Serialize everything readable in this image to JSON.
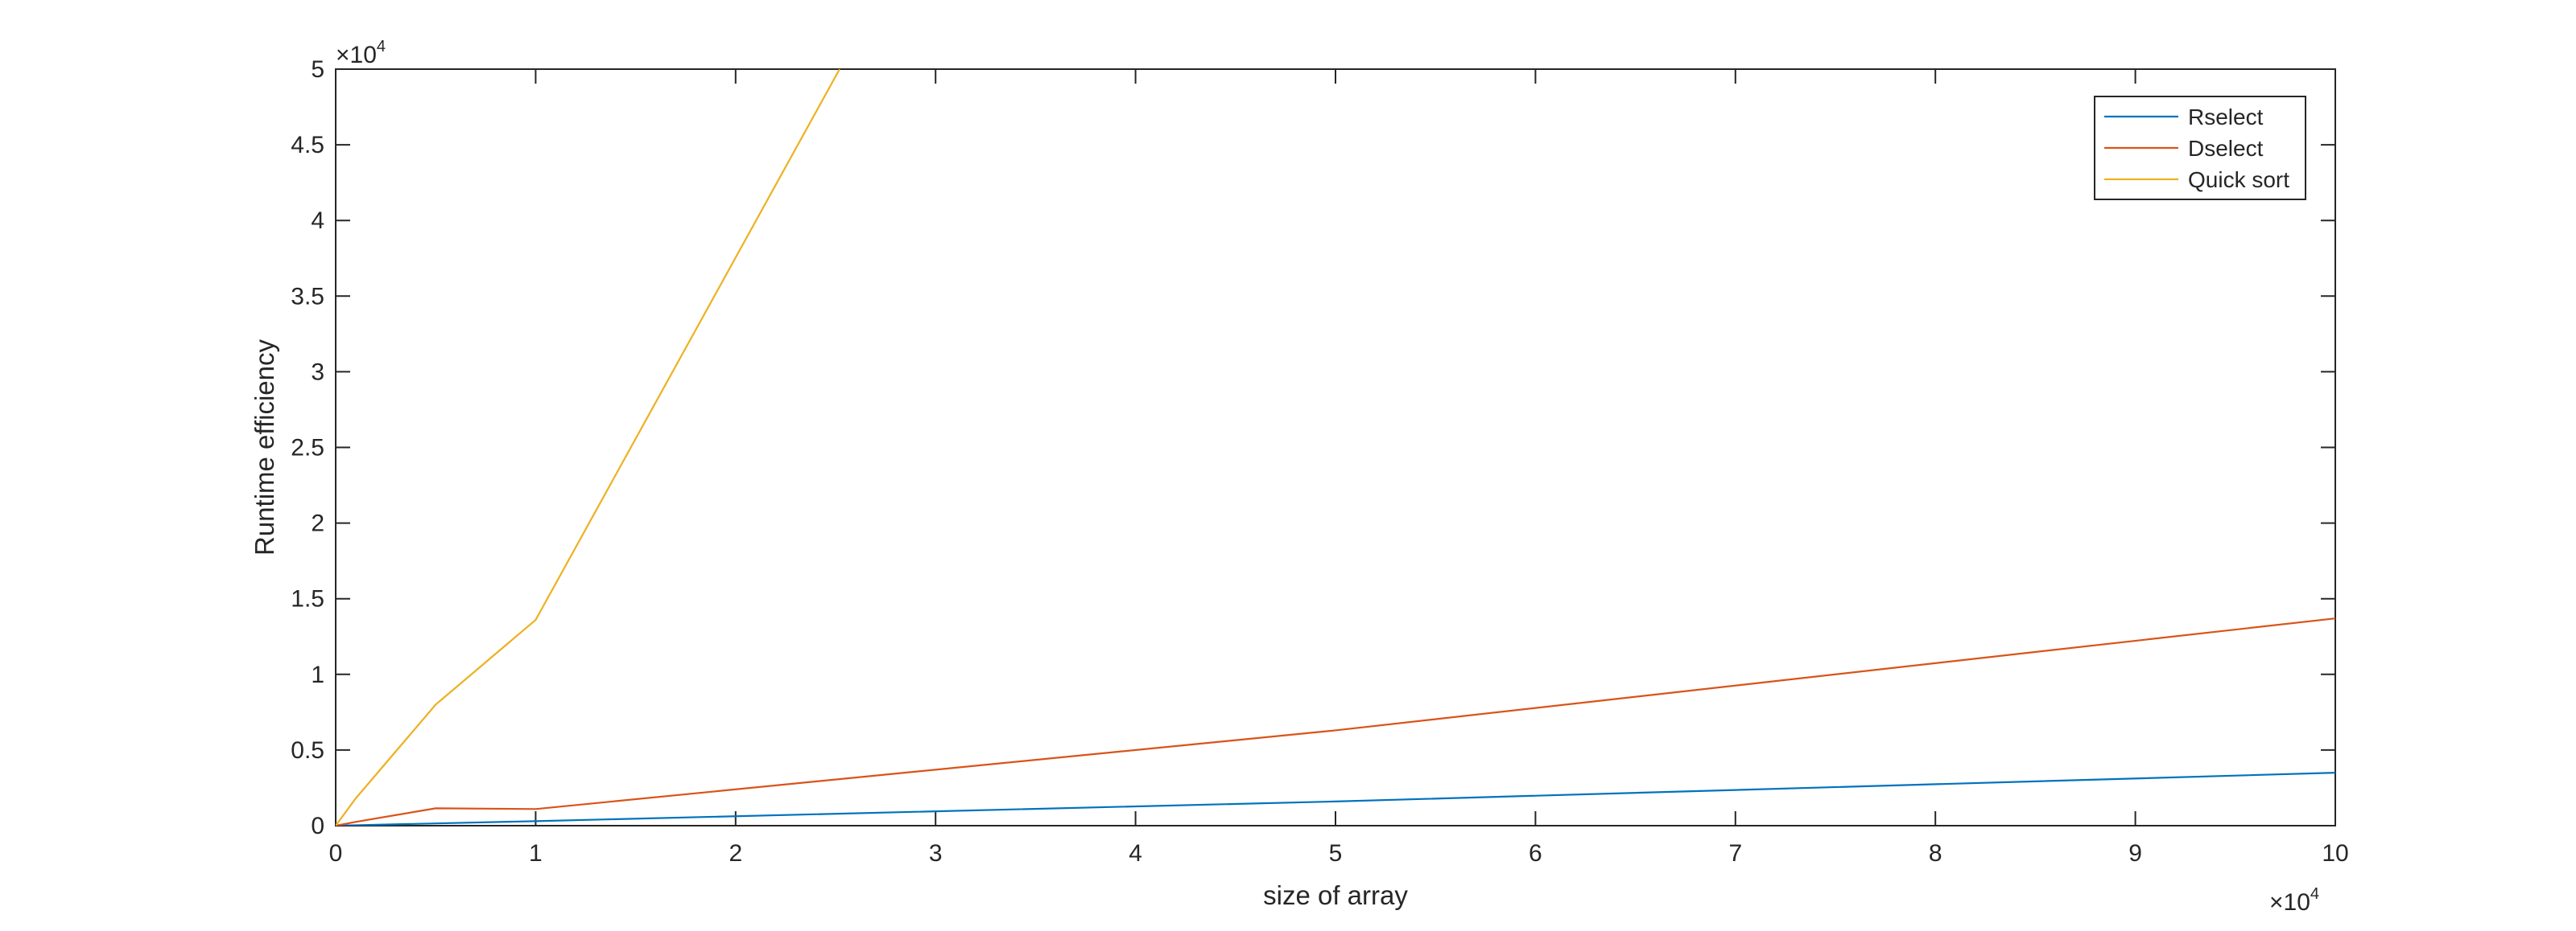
{
  "chart_data": {
    "type": "line",
    "title": "",
    "xlabel": "size of array",
    "ylabel": "Runtime efficiency",
    "x_exponent_label": "×10",
    "x_exponent": "4",
    "y_exponent_label": "×10",
    "y_exponent": "4",
    "xlim": [
      0,
      100000
    ],
    "ylim": [
      0,
      50000
    ],
    "x_ticks": [
      0,
      10000,
      20000,
      30000,
      40000,
      50000,
      60000,
      70000,
      80000,
      90000,
      100000
    ],
    "x_tick_labels": [
      "0",
      "1",
      "2",
      "3",
      "4",
      "5",
      "6",
      "7",
      "8",
      "9",
      "10"
    ],
    "y_ticks": [
      0,
      5000,
      10000,
      15000,
      20000,
      25000,
      30000,
      35000,
      40000,
      45000,
      50000
    ],
    "y_tick_labels": [
      "0",
      "0.5",
      "1",
      "1.5",
      "2",
      "2.5",
      "3",
      "3.5",
      "4",
      "4.5",
      "5"
    ],
    "grid": false,
    "legend_position": "top-right",
    "series": [
      {
        "name": "Rselect",
        "color": "#0072BD",
        "x": [
          0,
          1000,
          5000,
          10000,
          50000,
          100000
        ],
        "y": [
          0,
          30,
          150,
          300,
          1600,
          3500
        ]
      },
      {
        "name": "Dselect",
        "color": "#D95319",
        "x": [
          0,
          1000,
          5000,
          10000,
          50000,
          100000
        ],
        "y": [
          0,
          250,
          1150,
          1100,
          6300,
          13700
        ]
      },
      {
        "name": "Quick sort",
        "color": "#EDB120",
        "x": [
          0,
          1000,
          5000,
          10000,
          25200
        ],
        "y": [
          0,
          1800,
          8000,
          13600,
          50000
        ]
      }
    ]
  }
}
